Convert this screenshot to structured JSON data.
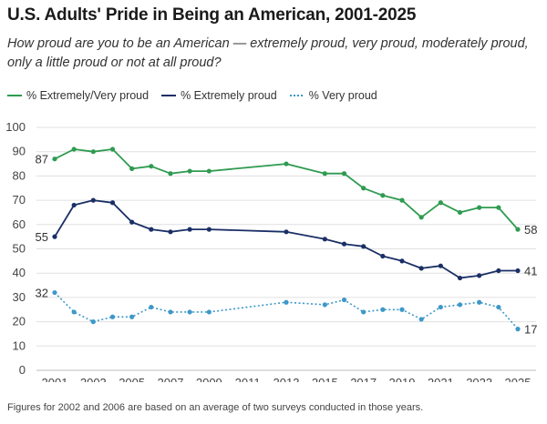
{
  "title": "U.S. Adults' Pride in Being an American, 2001-2025",
  "subtitle": "How proud are you to be an American — extremely proud, very proud, moderately proud, only a little proud or not at all proud?",
  "footnote": "Figures for 2002 and 2006 are based on an average of two surveys conducted in those years.",
  "colors": {
    "green": "#2e9b50",
    "navy": "#1b2f66",
    "light_blue": "#3d98c9",
    "grid": "#e0e0e0"
  },
  "chart_data": {
    "type": "line",
    "xlim": [
      2001,
      2025
    ],
    "ylim": [
      0,
      100
    ],
    "yticks": [
      "0",
      "10",
      "20",
      "30",
      "40",
      "50",
      "60",
      "70",
      "80",
      "90",
      "100"
    ],
    "xticks": [
      "2001",
      "2003",
      "2005",
      "2007",
      "2009",
      "2011",
      "2013",
      "2015",
      "2017",
      "2019",
      "2021",
      "2023",
      "2025"
    ],
    "grid": true,
    "legend_position": "top-left",
    "series": [
      {
        "name": "% Extremely/Very proud",
        "color": "#2e9b50",
        "style": "solid",
        "points": [
          [
            2001,
            87
          ],
          [
            2002,
            91
          ],
          [
            2003,
            90
          ],
          [
            2004,
            91
          ],
          [
            2005,
            83
          ],
          [
            2006,
            84
          ],
          [
            2007,
            81
          ],
          [
            2008,
            82
          ],
          [
            2009,
            82
          ],
          [
            2013,
            85
          ],
          [
            2015,
            81
          ],
          [
            2016,
            81
          ],
          [
            2017,
            75
          ],
          [
            2018,
            72
          ],
          [
            2019,
            70
          ],
          [
            2020,
            63
          ],
          [
            2021,
            69
          ],
          [
            2022,
            65
          ],
          [
            2023,
            67
          ],
          [
            2024,
            67
          ],
          [
            2025,
            58
          ]
        ]
      },
      {
        "name": "% Extremely proud",
        "color": "#1b2f66",
        "style": "solid",
        "points": [
          [
            2001,
            55
          ],
          [
            2002,
            68
          ],
          [
            2003,
            70
          ],
          [
            2004,
            69
          ],
          [
            2005,
            61
          ],
          [
            2006,
            58
          ],
          [
            2007,
            57
          ],
          [
            2008,
            58
          ],
          [
            2009,
            58
          ],
          [
            2013,
            57
          ],
          [
            2015,
            54
          ],
          [
            2016,
            52
          ],
          [
            2017,
            51
          ],
          [
            2018,
            47
          ],
          [
            2019,
            45
          ],
          [
            2020,
            42
          ],
          [
            2021,
            43
          ],
          [
            2022,
            38
          ],
          [
            2023,
            39
          ],
          [
            2024,
            41
          ],
          [
            2025,
            41
          ]
        ]
      },
      {
        "name": "% Very proud",
        "color": "#3d98c9",
        "style": "dotted",
        "points": [
          [
            2001,
            32
          ],
          [
            2002,
            24
          ],
          [
            2003,
            20
          ],
          [
            2004,
            22
          ],
          [
            2005,
            22
          ],
          [
            2006,
            26
          ],
          [
            2007,
            24
          ],
          [
            2008,
            24
          ],
          [
            2009,
            24
          ],
          [
            2013,
            28
          ],
          [
            2015,
            27
          ],
          [
            2016,
            29
          ],
          [
            2017,
            24
          ],
          [
            2018,
            25
          ],
          [
            2019,
            25
          ],
          [
            2020,
            21
          ],
          [
            2021,
            26
          ],
          [
            2022,
            27
          ],
          [
            2023,
            28
          ],
          [
            2024,
            26
          ],
          [
            2025,
            17
          ]
        ]
      }
    ],
    "annotations": [
      {
        "text": "87",
        "series": 0,
        "x": 2001,
        "y": 87,
        "side": "left"
      },
      {
        "text": "55",
        "series": 1,
        "x": 2001,
        "y": 55,
        "side": "left"
      },
      {
        "text": "32",
        "series": 2,
        "x": 2001,
        "y": 32,
        "side": "left"
      },
      {
        "text": "58",
        "series": 0,
        "x": 2025,
        "y": 58,
        "side": "right"
      },
      {
        "text": "41",
        "series": 1,
        "x": 2025,
        "y": 41,
        "side": "right"
      },
      {
        "text": "17",
        "series": 2,
        "x": 2025,
        "y": 17,
        "side": "right"
      }
    ]
  }
}
